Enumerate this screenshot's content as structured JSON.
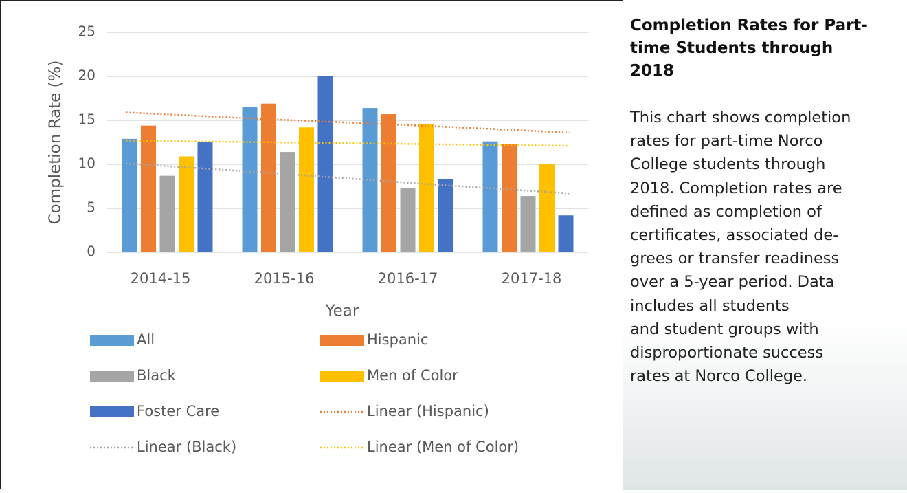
{
  "chart_data": {
    "type": "bar",
    "x_label": "Year",
    "y_label": "Completion Rate (%)",
    "categories": [
      "2014-15",
      "2015-16",
      "2016-17",
      "2017-18"
    ],
    "series": [
      {
        "name": "All",
        "color": "#5b9bd5",
        "values": [
          12.9,
          16.5,
          16.4,
          12.6
        ]
      },
      {
        "name": "Hispanic",
        "color": "#ed7d31",
        "values": [
          14.4,
          16.9,
          15.7,
          12.3
        ]
      },
      {
        "name": "Black",
        "color": "#a5a5a5",
        "values": [
          8.7,
          11.4,
          7.3,
          6.4
        ]
      },
      {
        "name": "Men of Color",
        "color": "#ffc000",
        "values": [
          10.9,
          14.2,
          14.6,
          10.0
        ]
      },
      {
        "name": "Foster Care",
        "color": "#4472c4",
        "values": [
          12.5,
          20.0,
          8.3,
          4.2
        ]
      },
      {
        "name": "Linear (Hispanic)",
        "color": "#ed7d31",
        "type": "line",
        "line_style": "dotted",
        "values": [
          15.9,
          15.1,
          14.4,
          13.6
        ]
      },
      {
        "name": "Linear (Black)",
        "color": "#a5a5a5",
        "type": "line",
        "line_style": "dotted",
        "values": [
          10.1,
          9.0,
          7.8,
          6.7
        ]
      },
      {
        "name": "Linear (Men of Color)",
        "color": "#ffc000",
        "type": "line",
        "line_style": "dotted",
        "values": [
          12.7,
          12.5,
          12.3,
          12.1
        ]
      }
    ],
    "ylim": [
      0,
      25
    ],
    "yticks": [
      0,
      5,
      10,
      15,
      20,
      25
    ],
    "grid": true,
    "legend": "bottom"
  },
  "panel": {
    "title_lines": [
      "Completion Rates for Part-",
      "time Students through",
      "2018"
    ],
    "body_lines": [
      "This chart shows completion",
      "rates for part-time Norco",
      "College students through",
      "2018. Completion rates are",
      "defined as completion of",
      "certificates, associated de-",
      "grees or transfer readiness",
      "over a 5-year period. Data",
      "includes all students",
      "and student groups with",
      "disproportionate success",
      "rates at Norco College."
    ]
  }
}
